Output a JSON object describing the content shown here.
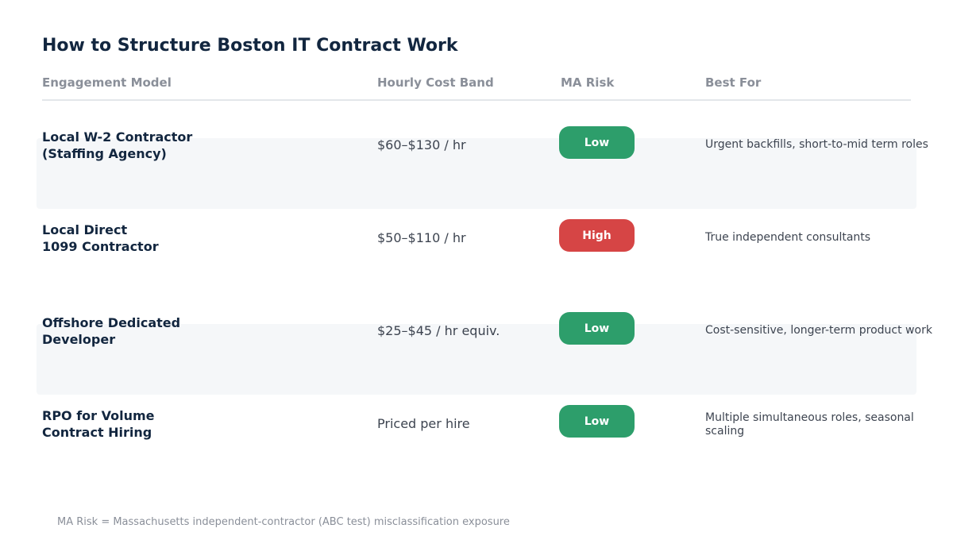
{
  "title": "How to Structure Boston IT Contract Work",
  "columns": {
    "model": "Engagement Model",
    "cost": "Hourly Cost Band",
    "risk": "MA Risk",
    "best": "Best For"
  },
  "rows": [
    {
      "model": "Local W-2 Contractor\n(Staffing Agency)",
      "cost": "$60–$130 / hr",
      "risk": "Low",
      "best": "Urgent backfills, short-to-mid term roles"
    },
    {
      "model": "Local Direct\n1099 Contractor",
      "cost": "$50–$110 / hr",
      "risk": "High",
      "best": "True independent consultants"
    },
    {
      "model": "Offshore Dedicated\nDeveloper",
      "cost": "$25–$45 / hr equiv.",
      "risk": "Low",
      "best": "Cost-sensitive, longer-term product work"
    },
    {
      "model": "RPO for Volume\nContract Hiring",
      "cost": "Priced per hire",
      "risk": "Low",
      "best": "Multiple simultaneous roles, seasonal scaling"
    }
  ],
  "risk_colors": {
    "Low": "#2d9e6b",
    "High": "#d64545"
  },
  "footnote": "MA Risk = Massachusetts independent-contractor (ABC test) misclassification exposure"
}
